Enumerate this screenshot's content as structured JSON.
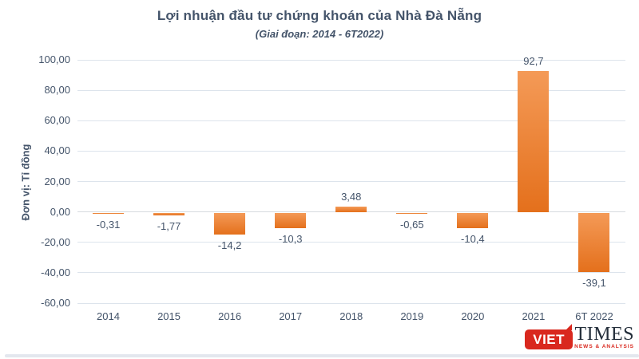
{
  "header": {
    "title": "Lợi nhuận đầu tư chứng khoán của Nhà Đà Nẵng",
    "subtitle": "(Giai đoạn: 2014 - 6T2022)"
  },
  "chart_data": {
    "type": "bar",
    "title": "Lợi nhuận đầu tư chứng khoán của Nhà Đà Nẵng",
    "subtitle": "(Giai đoạn: 2014 - 6T2022)",
    "ylabel": "Đơn vị: Tỉ đồng",
    "xlabel": "",
    "categories": [
      "2014",
      "2015",
      "2016",
      "2017",
      "2018",
      "2019",
      "2020",
      "2021",
      "6T 2022"
    ],
    "values": [
      -0.31,
      -1.77,
      -14.2,
      -10.3,
      3.48,
      -0.65,
      -10.4,
      92.7,
      -39.1
    ],
    "data_labels": [
      "-0,31",
      "-1,77",
      "-14,2",
      "-10,3",
      "3,48",
      "-0,65",
      "-10,4",
      "92,7",
      "-39,1"
    ],
    "ylim": [
      -60,
      100
    ],
    "yticks": [
      100,
      80,
      60,
      40,
      20,
      0,
      -20,
      -40,
      -60
    ],
    "ytick_labels": [
      "100,00",
      "80,00",
      "60,00",
      "40,00",
      "20,00",
      "0,00",
      "-20,00",
      "-40,00",
      "-60,00"
    ],
    "grid": true,
    "legend": false,
    "colors": {
      "bar_gradient_top": "#f49a57",
      "bar_gradient_bottom": "#e4701c",
      "grid": "#dde4ec",
      "zero_line": "#d6dade",
      "text": "#44546A"
    }
  },
  "logo": {
    "part1": "VIET",
    "part2": "TIMES",
    "tagline": "NEWS & ANALYSIS",
    "red": "#d9281e",
    "dark": "#242e3a"
  },
  "footer": {
    "strip_color": "#e3e7ee"
  }
}
